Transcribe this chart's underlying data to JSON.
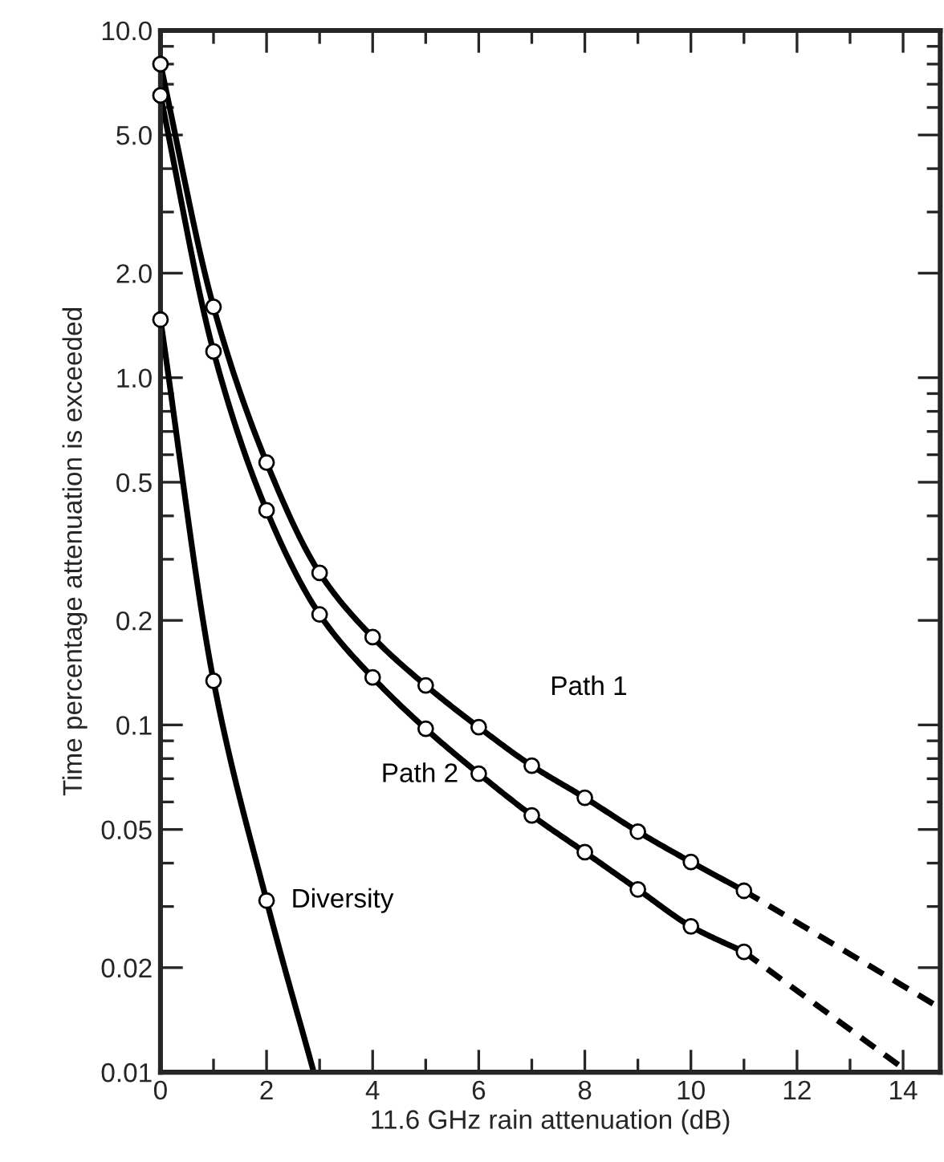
{
  "chart_data": {
    "type": "line",
    "xlabel": "11.6 GHz rain attenuation (dB)",
    "ylabel": "Time percentage attenuation is exceeded",
    "log": "y",
    "grid": false,
    "legend": false,
    "xlim": [
      0,
      14.7
    ],
    "ylim": [
      0.01,
      10
    ],
    "xticks": [
      0,
      {
        "value": 1,
        "label": null
      },
      2,
      {
        "value": 3,
        "label": null
      },
      4,
      {
        "value": 5,
        "label": null
      },
      6,
      {
        "value": 7,
        "label": null
      },
      8,
      {
        "value": 9,
        "label": null
      },
      10,
      {
        "value": 11,
        "label": null
      },
      12,
      {
        "value": 13,
        "label": null
      },
      14
    ],
    "yticks": [
      {
        "value": 0.01,
        "label": "0.01"
      },
      0.02,
      {
        "value": 0.03,
        "label": null
      },
      {
        "value": 0.04,
        "label": null
      },
      0.05,
      {
        "value": 0.06,
        "label": null
      },
      {
        "value": 0.07,
        "label": null
      },
      {
        "value": 0.08,
        "label": null
      },
      {
        "value": 0.09,
        "label": null
      },
      0.1,
      0.2,
      {
        "value": 0.3,
        "label": null
      },
      {
        "value": 0.4,
        "label": null
      },
      0.5,
      {
        "value": 0.6,
        "label": null
      },
      {
        "value": 0.7,
        "label": null
      },
      {
        "value": 0.8,
        "label": null
      },
      {
        "value": 0.9,
        "label": null
      },
      {
        "value": 1,
        "label": "1.0"
      },
      {
        "value": 2,
        "label": "2.0"
      },
      {
        "value": 3,
        "label": null
      },
      {
        "value": 4,
        "label": null
      },
      {
        "value": 5,
        "label": "5.0"
      },
      {
        "value": 6,
        "label": null
      },
      {
        "value": 7,
        "label": null
      },
      {
        "value": 8,
        "label": null
      },
      {
        "value": 9,
        "label": null
      },
      {
        "value": 10,
        "label": "10.0"
      }
    ],
    "series": [
      {
        "name": "Path 1",
        "color": "#000000",
        "marker": "circle",
        "line_style": "solid",
        "x": [
          0,
          1,
          2,
          3,
          4,
          5,
          6,
          7,
          8,
          9,
          10,
          11
        ],
        "values": [
          8.0,
          1.6,
          0.57,
          0.274,
          0.179,
          0.13,
          0.0985,
          0.0763,
          0.0617,
          0.0493,
          0.0403,
          0.0333
        ]
      },
      {
        "color": "#000000",
        "marker": "none",
        "line_style": "dashed",
        "x": [
          11,
          14.7
        ],
        "values": [
          0.0333,
          0.0153
        ]
      },
      {
        "name": "Path 2",
        "color": "#000000",
        "marker": "circle",
        "line_style": "solid",
        "x": [
          0,
          1,
          2,
          3,
          4,
          5,
          6,
          7,
          8,
          9,
          10,
          11
        ],
        "values": [
          6.5,
          1.19,
          0.415,
          0.208,
          0.137,
          0.0975,
          0.0724,
          0.0549,
          0.043,
          0.0336,
          0.0263,
          0.0222
        ]
      },
      {
        "color": "#000000",
        "marker": "none",
        "line_style": "dashed",
        "x": [
          11,
          14.1
        ],
        "values": [
          0.0222,
          0.01
        ]
      },
      {
        "name": "Diversity",
        "color": "#000000",
        "marker": "circle",
        "line_style": "solid",
        "x": [
          0,
          1,
          2,
          2.89
        ],
        "values": [
          1.47,
          0.134,
          0.0312,
          0.01
        ]
      }
    ]
  }
}
